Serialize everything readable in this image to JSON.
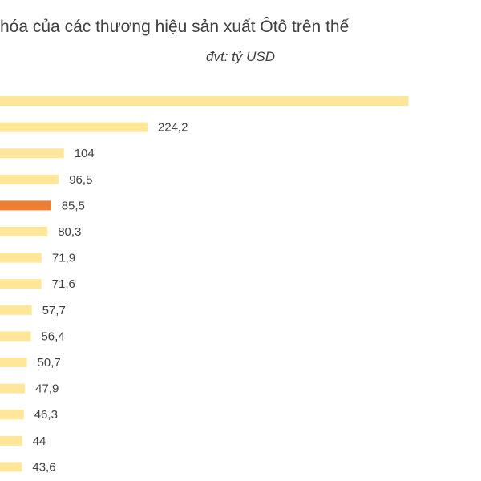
{
  "chart_data": {
    "type": "bar",
    "orientation": "horizontal",
    "title": "hóa của các thương hiệu sản xuất Ôtô trên thế",
    "subtitle": "đvt: tỷ USD",
    "xlabel": "",
    "ylabel": "",
    "grid": false,
    "value_labels": [
      "",
      "224,2",
      "104",
      "96,5",
      "85,5",
      "80,3",
      "71,9",
      "71,6",
      "57,7",
      "56,4",
      "50,7",
      "47,9",
      "46,3",
      "44",
      "43,6"
    ],
    "values": [
      600.0,
      224.2,
      104,
      96.5,
      85.5,
      80.3,
      71.9,
      71.6,
      57.7,
      56.4,
      50.7,
      47.9,
      46.3,
      44,
      43.6
    ],
    "highlight_index": 4,
    "colors": {
      "bar": "#FFE699",
      "highlight": "#ED7D31",
      "text": "#404040"
    }
  }
}
